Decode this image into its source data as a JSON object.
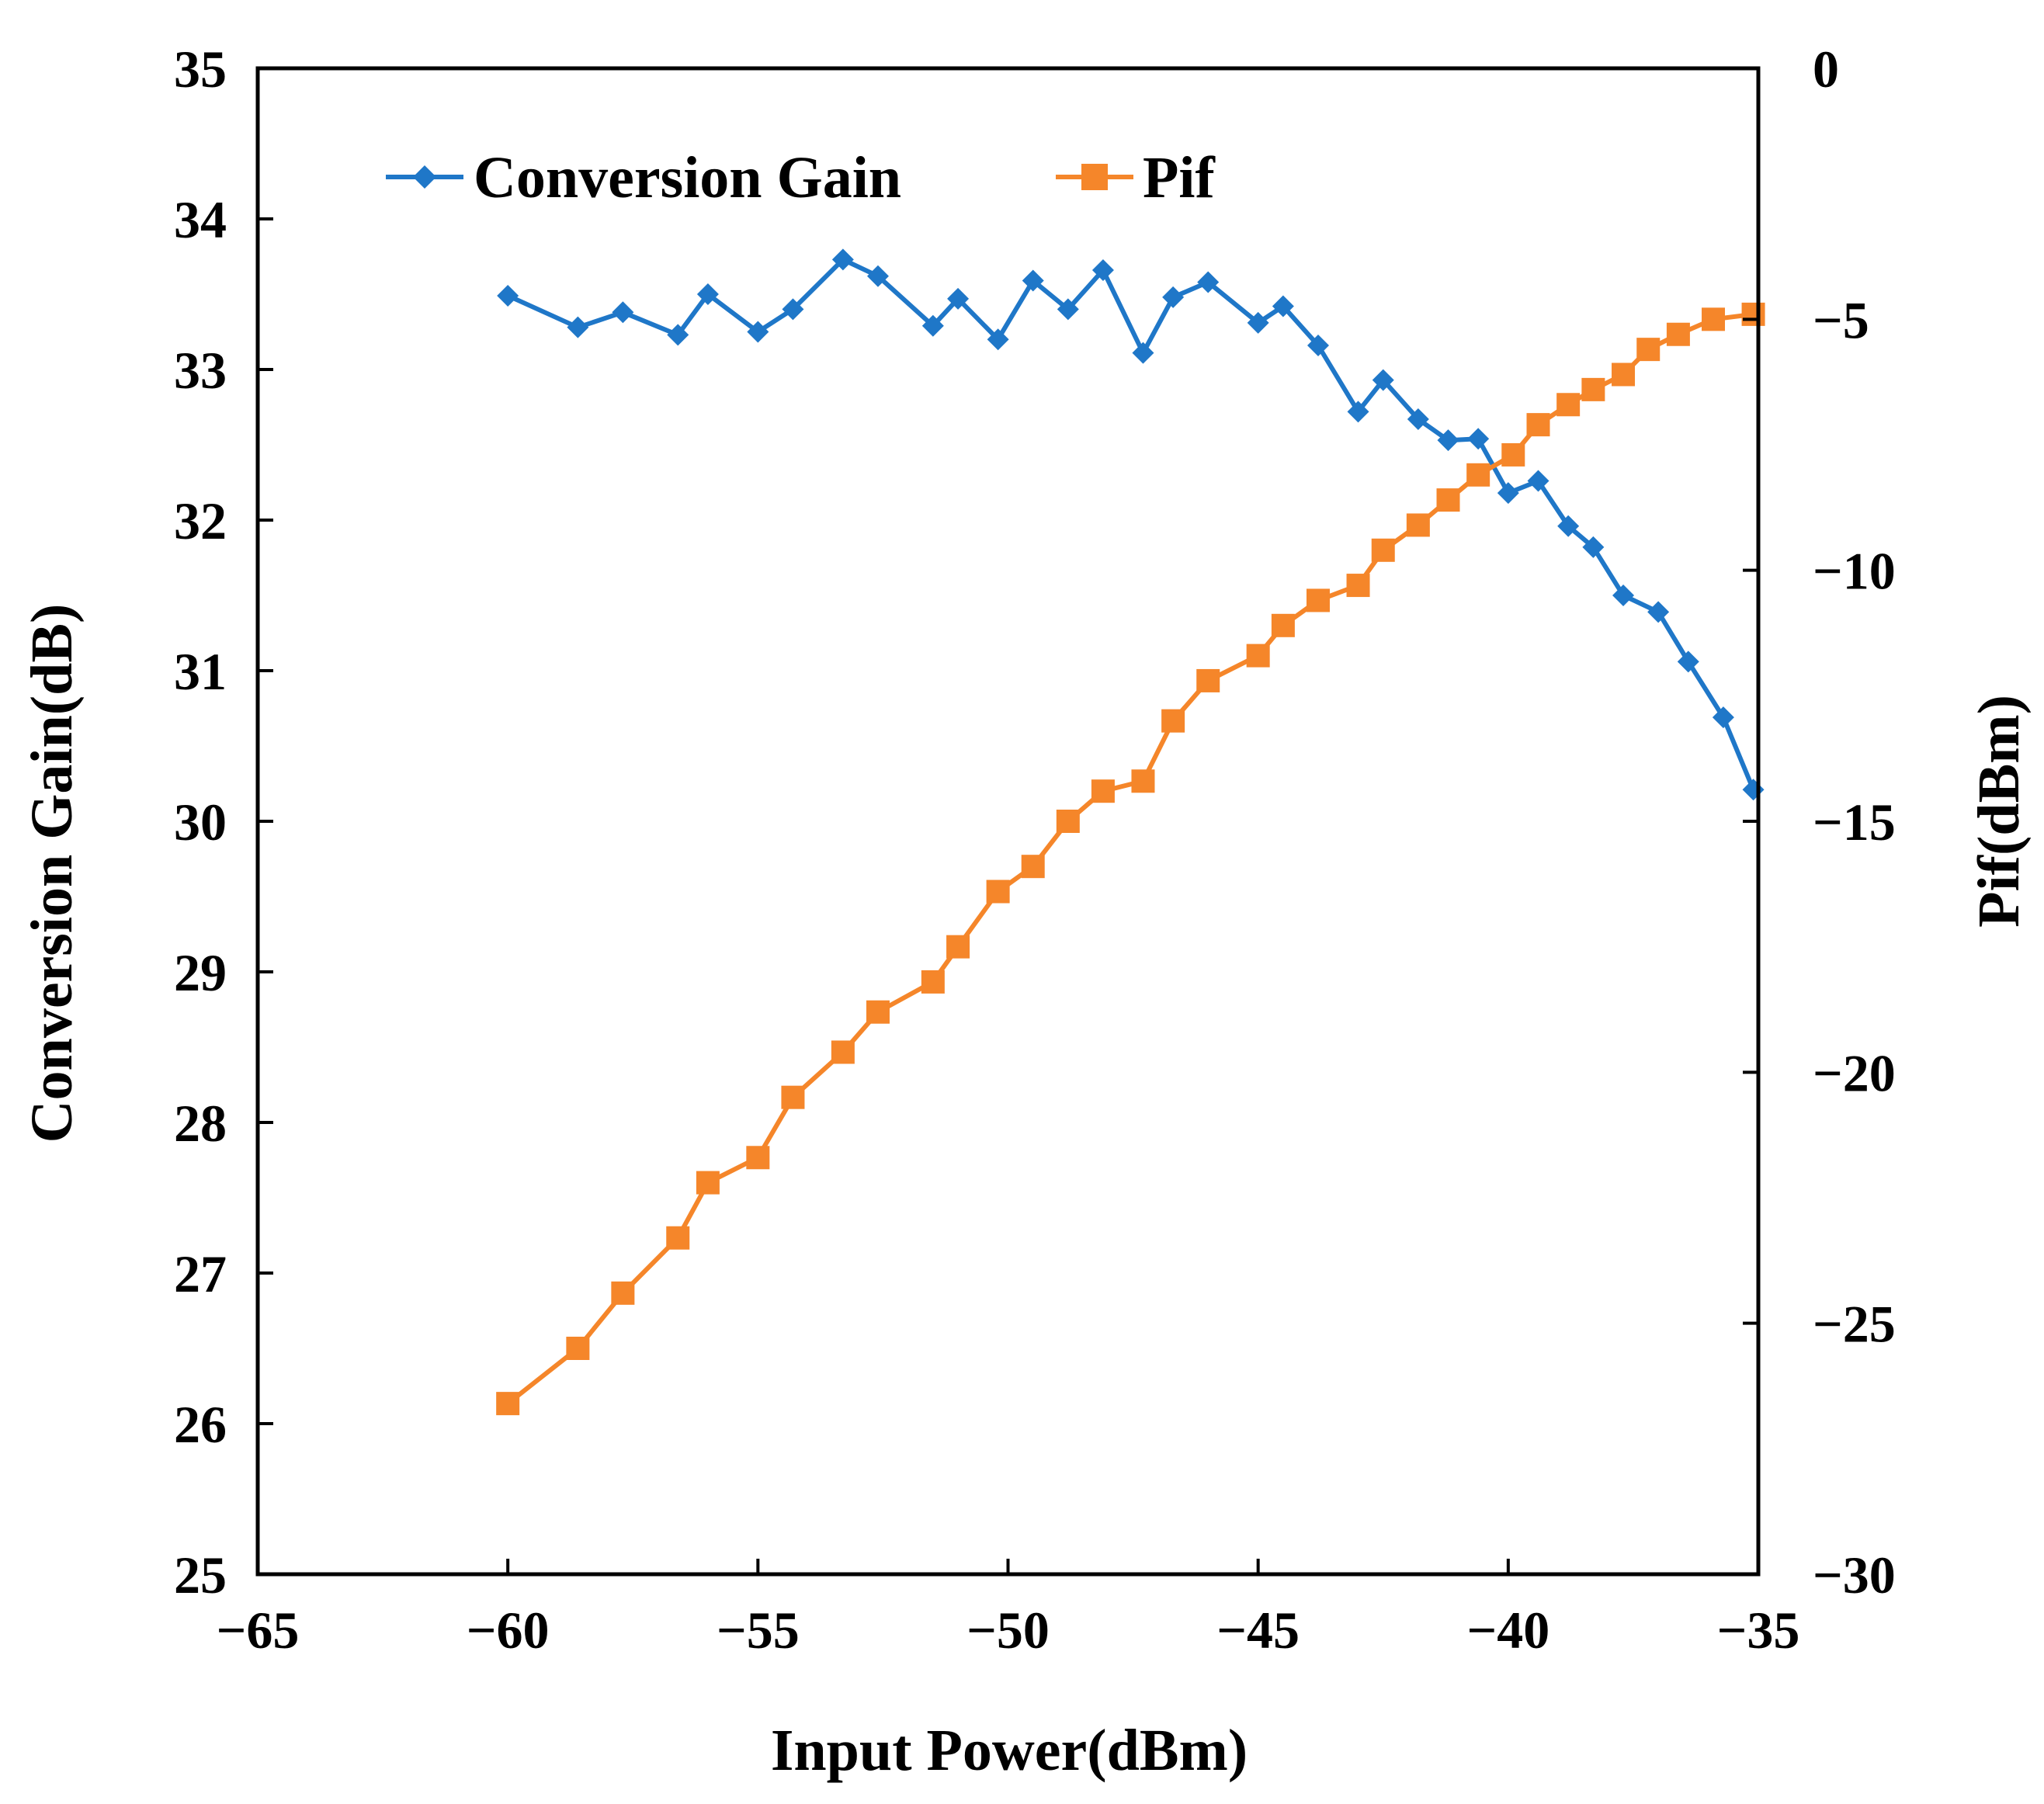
{
  "chart_data": {
    "type": "line",
    "title": "",
    "xlabel": "Input Power(dBm)",
    "ylabel": "Conversion Gain(dB)",
    "y2label": "Pif(dBm)",
    "xlim": [
      -65,
      -35
    ],
    "ylim": [
      25,
      35
    ],
    "y2lim": [
      -30,
      0
    ],
    "x_ticks": [
      -65,
      -60,
      -55,
      -50,
      -45,
      -40,
      -35
    ],
    "x_tick_labels": [
      "−65",
      "−60",
      "−55",
      "−50",
      "−45",
      "−40",
      "−35"
    ],
    "y_ticks": [
      25,
      26,
      27,
      28,
      29,
      30,
      31,
      32,
      33,
      34,
      35
    ],
    "y_tick_labels": [
      "25",
      "26",
      "27",
      "28",
      "29",
      "30",
      "31",
      "32",
      "33",
      "34",
      "35"
    ],
    "y2_ticks": [
      0,
      -5,
      -10,
      -15,
      -20,
      -25,
      -30
    ],
    "y2_tick_labels": [
      "0",
      "−5",
      "−10",
      "−15",
      "−20",
      "−25",
      "−30"
    ],
    "grid": false,
    "legend_position": "top-left",
    "series": [
      {
        "name": "Conversion Gain",
        "axis": "left",
        "color": "#1f77c8",
        "marker": "diamond",
        "points": [
          [
            -60.0,
            33.49
          ],
          [
            -58.6,
            33.28
          ],
          [
            -57.7,
            33.38
          ],
          [
            -56.6,
            33.23
          ],
          [
            -56.0,
            33.5
          ],
          [
            -55.0,
            33.25
          ],
          [
            -54.3,
            33.4
          ],
          [
            -53.3,
            33.73
          ],
          [
            -52.6,
            33.62
          ],
          [
            -51.5,
            33.29
          ],
          [
            -51.0,
            33.47
          ],
          [
            -50.2,
            33.2
          ],
          [
            -49.5,
            33.59
          ],
          [
            -48.8,
            33.4
          ],
          [
            -48.1,
            33.66
          ],
          [
            -47.3,
            33.11
          ],
          [
            -46.7,
            33.48
          ],
          [
            -46.0,
            33.58
          ],
          [
            -45.0,
            33.31
          ],
          [
            -44.5,
            33.42
          ],
          [
            -43.8,
            33.16
          ],
          [
            -43.0,
            32.72
          ],
          [
            -42.5,
            32.93
          ],
          [
            -41.8,
            32.67
          ],
          [
            -41.2,
            32.53
          ],
          [
            -40.6,
            32.54
          ],
          [
            -40.0,
            32.18
          ],
          [
            -39.4,
            32.26
          ],
          [
            -38.8,
            31.96
          ],
          [
            -38.3,
            31.82
          ],
          [
            -37.7,
            31.5
          ],
          [
            -37.0,
            31.39
          ],
          [
            -36.4,
            31.06
          ],
          [
            -35.7,
            30.69
          ],
          [
            -35.1,
            30.21
          ]
        ]
      },
      {
        "name": "Pif",
        "axis": "right",
        "color": "#f5862a",
        "marker": "square",
        "points": [
          [
            -60.0,
            -26.6
          ],
          [
            -58.6,
            -25.5
          ],
          [
            -57.7,
            -24.4
          ],
          [
            -56.6,
            -23.3
          ],
          [
            -56.0,
            -22.2
          ],
          [
            -55.0,
            -21.7
          ],
          [
            -54.3,
            -20.5
          ],
          [
            -53.3,
            -19.6
          ],
          [
            -52.6,
            -18.8
          ],
          [
            -51.5,
            -18.2
          ],
          [
            -51.0,
            -17.5
          ],
          [
            -50.2,
            -16.4
          ],
          [
            -49.5,
            -15.9
          ],
          [
            -48.8,
            -15.0
          ],
          [
            -48.1,
            -14.4
          ],
          [
            -47.3,
            -14.2
          ],
          [
            -46.7,
            -13.0
          ],
          [
            -46.0,
            -12.2
          ],
          [
            -45.0,
            -11.7
          ],
          [
            -44.5,
            -11.1
          ],
          [
            -43.8,
            -10.6
          ],
          [
            -43.0,
            -10.3
          ],
          [
            -42.5,
            -9.6
          ],
          [
            -41.8,
            -9.1
          ],
          [
            -41.2,
            -8.6
          ],
          [
            -40.6,
            -8.1
          ],
          [
            -39.9,
            -7.7
          ],
          [
            -39.4,
            -7.1
          ],
          [
            -38.8,
            -6.7
          ],
          [
            -38.3,
            -6.4
          ],
          [
            -37.7,
            -6.1
          ],
          [
            -37.2,
            -5.6
          ],
          [
            -36.6,
            -5.3
          ],
          [
            -35.9,
            -5.0
          ],
          [
            -35.1,
            -4.9
          ]
        ]
      }
    ]
  }
}
